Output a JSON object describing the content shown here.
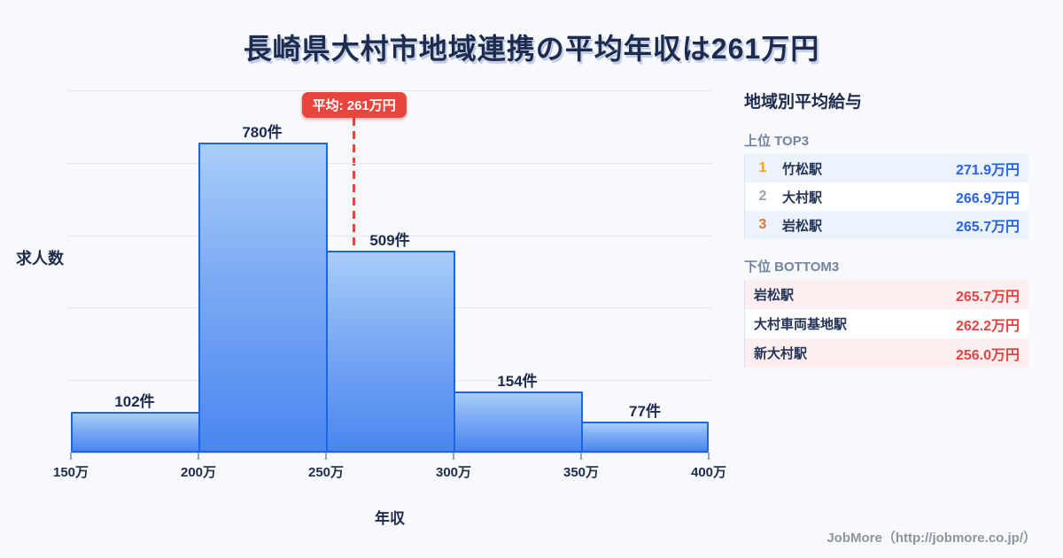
{
  "title": "長崎県大村市地域連携の平均年収は261万円",
  "chart_data": {
    "type": "bar",
    "subtype": "histogram",
    "categories": [
      "150万-200万",
      "200万-250万",
      "250万-300万",
      "300万-350万",
      "350万-400万"
    ],
    "values": [
      102,
      780,
      509,
      154,
      77
    ],
    "value_unit": "件",
    "x_tick_labels": [
      "150万",
      "200万",
      "250万",
      "300万",
      "350万",
      "400万"
    ],
    "xlabel": "年収",
    "ylabel": "求人数",
    "xlim": [
      150,
      400
    ],
    "ylim": [
      0,
      912
    ],
    "gridline_intervals": 5,
    "grid": "horizontal, unlabeled",
    "average": 261,
    "average_label": "平均: 261万円",
    "colors": {
      "bar_fill_top": "#a9cdf8",
      "bar_fill_bottom": "#4a86f0",
      "bar_border": "#1e66e0",
      "average_red": "#e8463c"
    }
  },
  "sidebar": {
    "heading": "地域別平均給与",
    "top3": {
      "title": "上位 TOP3",
      "value_color": "#2563eb",
      "rank_colors": {
        "1": "#f0a30a",
        "2": "#9ba3b0",
        "3": "#e0772e"
      },
      "rows": [
        {
          "rank": "1",
          "name": "竹松駅",
          "value": "271.9万円"
        },
        {
          "rank": "2",
          "name": "大村駅",
          "value": "266.9万円"
        },
        {
          "rank": "3",
          "name": "岩松駅",
          "value": "265.7万円"
        }
      ]
    },
    "bottom3": {
      "title": "下位 BOTTOM3",
      "value_color": "#e54242",
      "rows": [
        {
          "name": "岩松駅",
          "value": "265.7万円"
        },
        {
          "name": "大村車両基地駅",
          "value": "262.2万円"
        },
        {
          "name": "新大村駅",
          "value": "256.0万円"
        }
      ]
    }
  },
  "footer": {
    "credit": "JobMore（http://jobmore.co.jp/）"
  }
}
